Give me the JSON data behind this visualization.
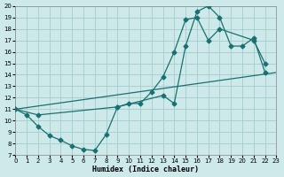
{
  "xlabel": "Humidex (Indice chaleur)",
  "xlim": [
    0,
    23
  ],
  "ylim": [
    7,
    20
  ],
  "xticks": [
    0,
    1,
    2,
    3,
    4,
    5,
    6,
    7,
    8,
    9,
    10,
    11,
    12,
    13,
    14,
    15,
    16,
    17,
    18,
    19,
    20,
    21,
    22,
    23
  ],
  "yticks": [
    7,
    8,
    9,
    10,
    11,
    12,
    13,
    14,
    15,
    16,
    17,
    18,
    19,
    20
  ],
  "bg_color": "#cde9e9",
  "grid_color": "#aad0d0",
  "line_color": "#1a7070",
  "line1_x": [
    0,
    1,
    2,
    3,
    4,
    5,
    6,
    7,
    8,
    9,
    10,
    11,
    12,
    13,
    14,
    15,
    16,
    17,
    18,
    21,
    22
  ],
  "line1_y": [
    11,
    10.5,
    9.5,
    8.7,
    8.3,
    7.8,
    7.5,
    7.4,
    8.8,
    11.2,
    11.5,
    11.5,
    12.5,
    13.8,
    16.0,
    18.8,
    19.0,
    17.0,
    18.0,
    17.0,
    15.0
  ],
  "line2_x": [
    0,
    2,
    9,
    13,
    14,
    15,
    16,
    17,
    18,
    19,
    20,
    21,
    22
  ],
  "line2_y": [
    11,
    10.5,
    11.2,
    12.2,
    11.5,
    16.5,
    19.5,
    20.0,
    19.0,
    16.5,
    16.5,
    17.2,
    14.2
  ],
  "line3_x": [
    0,
    23
  ],
  "line3_y": [
    11,
    14.2
  ]
}
